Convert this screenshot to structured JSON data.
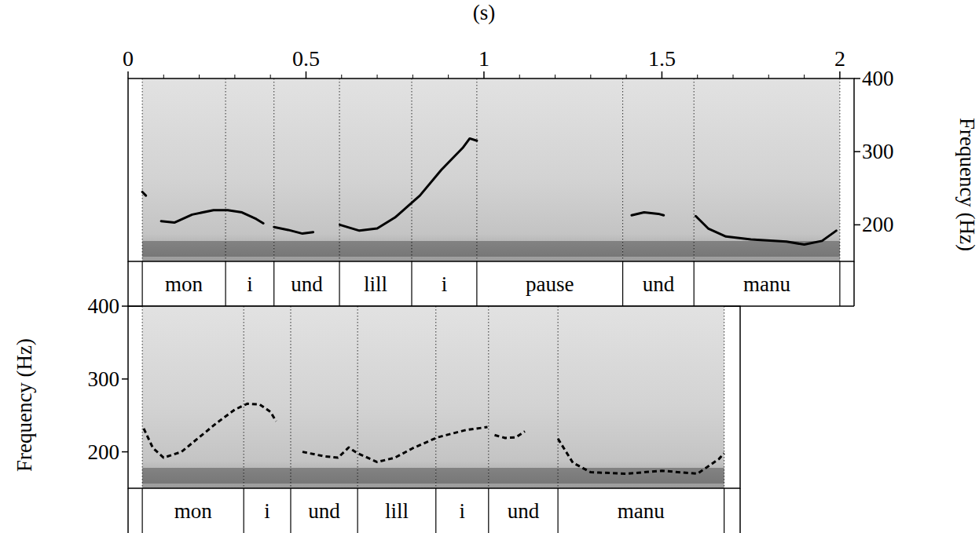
{
  "chart_data": [
    {
      "type": "line",
      "x_label": "(s)",
      "y_label": "Frequency (Hz)",
      "xlim": [
        0,
        2.04
      ],
      "xticks": [
        0,
        0.5,
        1,
        1.5,
        2
      ],
      "ylim": [
        150,
        400
      ],
      "yticks": [
        200,
        300,
        400
      ],
      "tick_labels": true,
      "series": [
        {
          "line_style": "solid",
          "color": "#000000",
          "x": [
            0.04,
            0.05,
            null,
            0.093,
            0.13,
            0.18,
            0.24,
            0.28,
            0.32,
            0.36,
            0.38,
            null,
            0.41,
            0.45,
            0.49,
            0.52,
            null,
            0.595,
            0.65,
            0.7,
            0.75,
            0.82,
            0.88,
            0.94,
            0.96,
            0.98,
            null,
            1.415,
            1.45,
            1.49,
            1.505,
            null,
            1.595,
            1.63,
            1.68,
            1.75,
            1.85,
            1.9,
            1.95,
            1.99
          ],
          "values": [
            245,
            240,
            null,
            205,
            203,
            214,
            220,
            220,
            217,
            208,
            202,
            null,
            197,
            193,
            188,
            190,
            null,
            200,
            192,
            195,
            210,
            240,
            275,
            305,
            318,
            315,
            null,
            213,
            217,
            215,
            213,
            null,
            212,
            195,
            184,
            180,
            177,
            173,
            178,
            192
          ]
        }
      ],
      "segments": {
        "labels": [
          "mon",
          "i",
          "und",
          "lill",
          "i",
          "pause",
          "und",
          "manu"
        ],
        "bounds": [
          0.04,
          0.274,
          0.41,
          0.594,
          0.797,
          0.98,
          1.39,
          1.59,
          2.0
        ]
      }
    },
    {
      "type": "line",
      "y_label": "Frequency (Hz)",
      "xlim": [
        0,
        1.72
      ],
      "ylim": [
        150,
        400
      ],
      "yticks": [
        200,
        300,
        400
      ],
      "tick_labels": "y",
      "series": [
        {
          "line_style": "dashed",
          "color": "#000000",
          "x": [
            0.044,
            0.07,
            0.1,
            0.15,
            0.2,
            0.25,
            0.3,
            0.335,
            0.37,
            0.4,
            0.416,
            null,
            0.49,
            0.55,
            0.59,
            0.62,
            0.645,
            0.7,
            0.75,
            0.8,
            0.87,
            0.95,
            1.01,
            null,
            1.03,
            1.06,
            1.09,
            1.115,
            null,
            1.208,
            1.25,
            1.3,
            1.4,
            1.5,
            1.6,
            1.66,
            1.675
          ],
          "values": [
            232,
            205,
            192,
            200,
            220,
            240,
            258,
            266,
            265,
            255,
            242,
            null,
            200,
            194,
            192,
            206,
            198,
            186,
            192,
            205,
            220,
            230,
            234,
            null,
            223,
            219,
            220,
            228,
            null,
            218,
            185,
            172,
            170,
            174,
            170,
            190,
            198
          ]
        }
      ],
      "segments": {
        "labels": [
          "mon",
          "i",
          "und",
          "lill",
          "i",
          "und",
          "manu"
        ],
        "bounds": [
          0.04,
          0.325,
          0.457,
          0.645,
          0.865,
          1.013,
          1.208,
          1.675
        ]
      }
    }
  ]
}
